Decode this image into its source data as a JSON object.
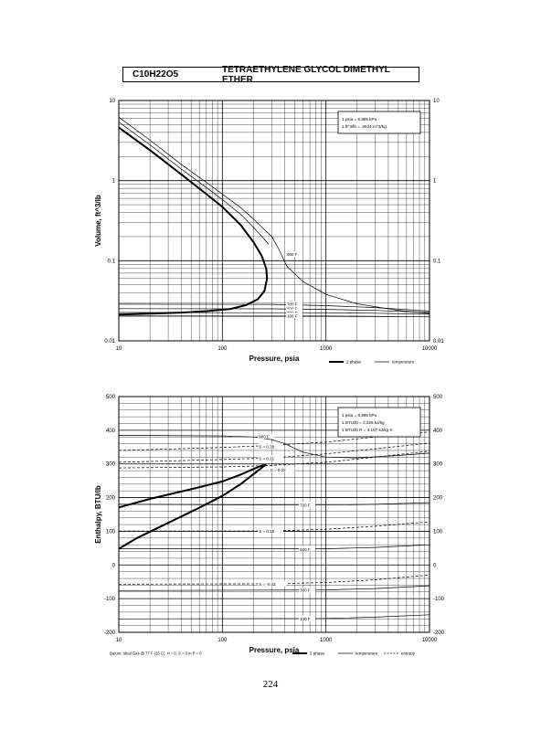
{
  "header": {
    "formula": "C10H22O5",
    "compound": "TETRAETHYLENE GLYCOL DIMETHYL ETHER"
  },
  "page_number": "224",
  "chart_data": [
    {
      "type": "line",
      "title": "",
      "xlabel": "Pressure,  psia",
      "ylabel": "Volume, ft^3/lb",
      "x_scale": "log",
      "y_scale": "log",
      "xlim": [
        10,
        10000
      ],
      "ylim": [
        0.01,
        10
      ],
      "x_ticks": [
        "10",
        "100",
        "1000",
        "10000"
      ],
      "y_ticks": [
        "0.01",
        "0.1",
        "1",
        "10"
      ],
      "y_tick_values": [
        0.01,
        0.1,
        1,
        10
      ],
      "grid": true,
      "conversions": [
        "1 psia  =  6.895 kPa",
        "1 ft^3/lb  =  .0624 m^3/kg"
      ],
      "legend": [
        {
          "label": "2 phase",
          "style": "thick"
        },
        {
          "label": "temperature",
          "style": "thin"
        }
      ],
      "series": [
        {
          "name": "2 phase",
          "style": "thick",
          "points": [
            [
              10,
              4.6
            ],
            [
              20,
              2.4
            ],
            [
              40,
              1.2
            ],
            [
              70,
              0.68
            ],
            [
              100,
              0.47
            ],
            [
              150,
              0.28
            ],
            [
              200,
              0.17
            ],
            [
              240,
              0.115
            ],
            [
              265,
              0.08
            ],
            [
              270,
              0.06
            ],
            [
              255,
              0.042
            ],
            [
              220,
              0.033
            ],
            [
              170,
              0.028
            ],
            [
              120,
              0.025
            ],
            [
              70,
              0.0235
            ],
            [
              40,
              0.0225
            ],
            [
              20,
              0.0218
            ],
            [
              10,
              0.0213
            ]
          ]
        },
        {
          "name": "900 F",
          "style": "thin",
          "points": [
            [
              10,
              6.2
            ],
            [
              20,
              3.2
            ],
            [
              40,
              1.6
            ],
            [
              70,
              0.95
            ],
            [
              100,
              0.68
            ],
            [
              150,
              0.46
            ],
            [
              200,
              0.33
            ],
            [
              250,
              0.25
            ],
            [
              300,
              0.2
            ],
            [
              350,
              0.14
            ],
            [
              420,
              0.085
            ],
            [
              600,
              0.055
            ],
            [
              1000,
              0.038
            ],
            [
              2000,
              0.029
            ],
            [
              5000,
              0.024
            ],
            [
              10000,
              0.022
            ]
          ]
        },
        {
          "name": "",
          "style": "thin",
          "points": [
            [
              10,
              5.4
            ],
            [
              20,
              2.8
            ],
            [
              40,
              1.4
            ],
            [
              70,
              0.82
            ],
            [
              100,
              0.58
            ],
            [
              150,
              0.38
            ],
            [
              200,
              0.26
            ],
            [
              250,
              0.19
            ],
            [
              280,
              0.16
            ]
          ]
        },
        {
          "name": "700 F",
          "style": "thin",
          "points": [
            [
              10,
              0.0287
            ],
            [
              300,
              0.0285
            ],
            [
              1000,
              0.0275
            ],
            [
              3000,
              0.026
            ],
            [
              10000,
              0.0235
            ]
          ]
        },
        {
          "name": "500 F",
          "style": "thin",
          "points": [
            [
              10,
              0.0252
            ],
            [
              300,
              0.0251
            ],
            [
              1000,
              0.0247
            ],
            [
              3000,
              0.024
            ],
            [
              10000,
              0.0225
            ]
          ]
        },
        {
          "name": "300 F",
          "style": "thin",
          "points": [
            [
              10,
              0.0226
            ],
            [
              1000,
              0.0224
            ],
            [
              3000,
              0.0221
            ],
            [
              10000,
              0.0215
            ]
          ]
        },
        {
          "name": "100 F",
          "style": "thin",
          "points": [
            [
              10,
              0.0205
            ],
            [
              1000,
              0.0204
            ],
            [
              3000,
              0.0202
            ],
            [
              10000,
              0.0199
            ]
          ]
        }
      ],
      "curve_labels": [
        {
          "text": "900 F",
          "x": 420,
          "y": 0.12
        },
        {
          "text": "700 F",
          "x": 420,
          "y": 0.029
        },
        {
          "text": "500 F",
          "x": 420,
          "y": 0.0252
        },
        {
          "text": "300 F",
          "x": 420,
          "y": 0.0226
        },
        {
          "text": "100 F",
          "x": 420,
          "y": 0.0206
        }
      ]
    },
    {
      "type": "line",
      "title": "",
      "xlabel": "Pressure,  psia",
      "ylabel": "Enthalpy, BTU/lb",
      "x_scale": "log",
      "y_scale": "linear",
      "xlim": [
        10,
        10000
      ],
      "ylim": [
        -200,
        500
      ],
      "x_ticks": [
        "10",
        "100",
        "1000",
        "10000"
      ],
      "y_ticks": [
        "-200",
        "-100",
        "0",
        "100",
        "200",
        "300",
        "400",
        "500"
      ],
      "y_tick_values": [
        -200,
        -100,
        0,
        100,
        200,
        300,
        400,
        500
      ],
      "grid": true,
      "conversions": [
        "1 psia  =  6.895 kPa",
        "1 BTU/lb  =  2.326 kJ/kg",
        "1 BTU/lb R  =  4.187 kJ/kg K"
      ],
      "footnote": "Datum: Ideal Gas @ 77 F (25 C),  H = 0,  S = 0 in P = 0",
      "legend": [
        {
          "label": "2 phase",
          "style": "thick"
        },
        {
          "label": "temperature",
          "style": "thin"
        },
        {
          "label": "entropy",
          "style": "dashed"
        }
      ],
      "series": [
        {
          "name": "2 phase",
          "style": "thick",
          "points": [
            [
              10,
              171
            ],
            [
              20,
              196
            ],
            [
              50,
              225
            ],
            [
              100,
              248
            ],
            [
              150,
              268
            ],
            [
              200,
              285
            ],
            [
              240,
              295
            ],
            [
              265,
              298
            ],
            [
              250,
              293
            ],
            [
              200,
              270
            ],
            [
              150,
              240
            ],
            [
              100,
              205
            ],
            [
              60,
              170
            ],
            [
              30,
              125
            ],
            [
              15,
              80
            ],
            [
              10,
              48
            ]
          ]
        },
        {
          "name": "900 F",
          "style": "thin",
          "points": [
            [
              10,
              385
            ],
            [
              100,
              383
            ],
            [
              200,
              380
            ],
            [
              300,
              372
            ],
            [
              400,
              360
            ],
            [
              600,
              335
            ],
            [
              1000,
              320
            ],
            [
              2000,
              318
            ],
            [
              5000,
              325
            ],
            [
              10000,
              332
            ]
          ]
        },
        {
          "name": "700 F",
          "style": "thin",
          "points": [
            [
              10,
              180
            ],
            [
              1000,
              178
            ],
            [
              3000,
              180
            ],
            [
              10000,
              185
            ]
          ]
        },
        {
          "name": "500 F",
          "style": "thin",
          "points": [
            [
              10,
              48
            ],
            [
              1000,
              48
            ],
            [
              3000,
              52
            ],
            [
              10000,
              60
            ]
          ]
        },
        {
          "name": "300 F",
          "style": "thin",
          "points": [
            [
              10,
              -76
            ],
            [
              1000,
              -74
            ],
            [
              3000,
              -70
            ],
            [
              10000,
              -62
            ]
          ]
        },
        {
          "name": "100 F",
          "style": "thin",
          "points": [
            [
              10,
              -160
            ],
            [
              1000,
              -159
            ],
            [
              3000,
              -155
            ],
            [
              10000,
              -148
            ]
          ]
        },
        {
          "name": "S = 0.38",
          "style": "dashed",
          "points": [
            [
              10,
              340
            ],
            [
              100,
              349
            ],
            [
              300,
              355
            ],
            [
              1000,
              365
            ],
            [
              3000,
              380
            ],
            [
              10000,
              395
            ]
          ]
        },
        {
          "name": "S = 0.31",
          "style": "dashed",
          "points": [
            [
              10,
              305
            ],
            [
              100,
              313
            ],
            [
              300,
              318
            ],
            [
              1000,
              330
            ],
            [
              3000,
              345
            ],
            [
              10000,
              362
            ]
          ]
        },
        {
          "name": "S = 0.22",
          "style": "dashed",
          "points": [
            [
              10,
              288
            ],
            [
              100,
              291
            ],
            [
              270,
              295
            ],
            [
              1000,
              305
            ],
            [
              3000,
              320
            ],
            [
              10000,
              338
            ]
          ]
        },
        {
          "name": "S = 0.15",
          "style": "dashed",
          "points": [
            [
              10,
              101
            ],
            [
              300,
              101
            ],
            [
              1000,
              106
            ],
            [
              3000,
              115
            ],
            [
              10000,
              128
            ]
          ]
        },
        {
          "name": "S = -0.02",
          "style": "dashed",
          "points": [
            [
              10,
              -57
            ],
            [
              300,
              -56
            ],
            [
              1000,
              -52
            ],
            [
              3000,
              -44
            ],
            [
              10000,
              -30
            ]
          ]
        }
      ],
      "curve_labels": [
        {
          "text": "900 F",
          "x": 225,
          "y": 382
        },
        {
          "text": "S = 0.38",
          "x": 225,
          "y": 352
        },
        {
          "text": "S = 0.31",
          "x": 225,
          "y": 316
        },
        {
          "text": "S = 0.22",
          "x": 290,
          "y": 282
        },
        {
          "text": "700 F",
          "x": 560,
          "y": 178
        },
        {
          "text": "S = 0.15",
          "x": 225,
          "y": 101
        },
        {
          "text": "500 F",
          "x": 560,
          "y": 47
        },
        {
          "text": "S = -0.02",
          "x": 225,
          "y": -57
        },
        {
          "text": "300 F",
          "x": 560,
          "y": -75
        },
        {
          "text": "100 F",
          "x": 560,
          "y": -160
        }
      ]
    }
  ]
}
